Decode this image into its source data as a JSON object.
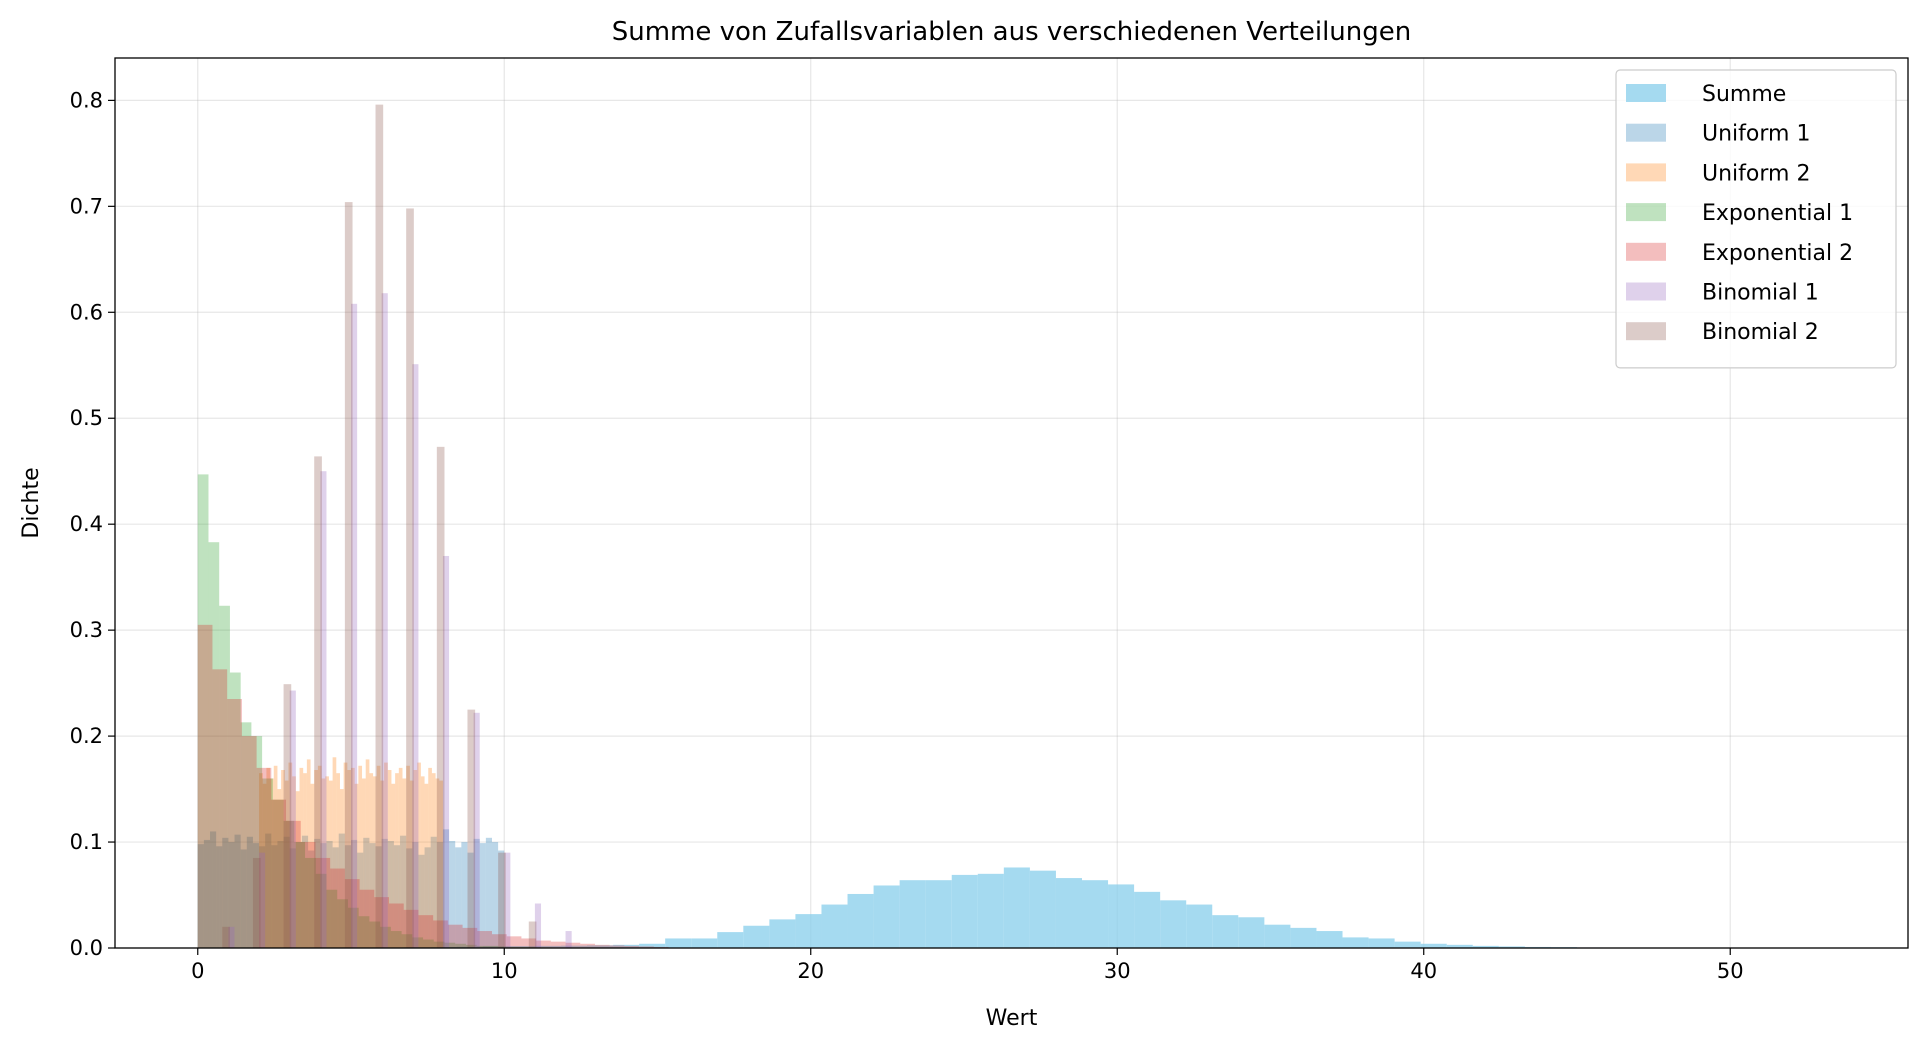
{
  "chart_data": {
    "type": "bar",
    "subtype": "overlapping-histogram",
    "title": "Summe von Zufallsvariablen aus verschiedenen Verteilungen",
    "xlabel": "Wert",
    "ylabel": "Dichte",
    "xlim": [
      -2.7,
      55.8
    ],
    "ylim": [
      0,
      0.84
    ],
    "xticks": [
      0,
      10,
      20,
      30,
      40,
      50
    ],
    "yticks": [
      0.0,
      0.1,
      0.2,
      0.3,
      0.4,
      0.5,
      0.6,
      0.7,
      0.8
    ],
    "grid": true,
    "legend_position": "top-right",
    "series": [
      {
        "name": "Summe",
        "color": "#87ceeb",
        "alpha": 0.75,
        "bin_edges": [
          0.8,
          1.65,
          2.5,
          3.35,
          4.2,
          5.05,
          5.9,
          6.75,
          7.6,
          8.45,
          9.3,
          10.15,
          11.0,
          11.85,
          12.7,
          13.55,
          14.4,
          15.25,
          16.1,
          16.95,
          17.8,
          18.65,
          19.5,
          20.35,
          21.2,
          22.05,
          22.9,
          23.75,
          24.6,
          25.45,
          26.3,
          27.15,
          28.0,
          28.85,
          29.7,
          30.55,
          31.4,
          32.25,
          33.1,
          33.95,
          34.8,
          35.65,
          36.5,
          37.35,
          38.2,
          39.05,
          39.9,
          40.75,
          41.6,
          42.45,
          43.3,
          44.15,
          45.0,
          45.85,
          46.7,
          47.55,
          48.4,
          49.25,
          50.1,
          50.95,
          51.8,
          52.65,
          53.5
        ],
        "values": [
          0.0002,
          0,
          0.0002,
          0,
          0,
          0,
          0.0005,
          0.0008,
          0.001,
          0.0012,
          0.0015,
          0.0018,
          0.002,
          0.0022,
          0.0025,
          0.003,
          0.004,
          0.009,
          0.009,
          0.015,
          0.021,
          0.027,
          0.032,
          0.041,
          0.051,
          0.059,
          0.064,
          0.064,
          0.069,
          0.07,
          0.076,
          0.073,
          0.066,
          0.064,
          0.06,
          0.053,
          0.045,
          0.041,
          0.031,
          0.029,
          0.022,
          0.019,
          0.016,
          0.01,
          0.009,
          0.006,
          0.004,
          0.003,
          0.002,
          0.0015,
          0.001,
          0.0008,
          0.0005,
          0.0004,
          0.0003,
          0.0002,
          0.0002,
          0.0001,
          0.0001,
          0.0001,
          0.0001,
          0.0001
        ]
      },
      {
        "name": "Uniform 1",
        "color": "#1f77b4",
        "alpha": 0.3,
        "bin_edges": [
          0.0,
          0.2,
          0.4,
          0.6,
          0.8,
          1.0,
          1.2,
          1.4,
          1.6,
          1.8,
          2.0,
          2.2,
          2.4,
          2.6,
          2.8,
          3.0,
          3.2,
          3.4,
          3.6,
          3.8,
          4.0,
          4.2,
          4.4,
          4.6,
          4.8,
          5.0,
          5.2,
          5.4,
          5.6,
          5.8,
          6.0,
          6.2,
          6.4,
          6.6,
          6.8,
          7.0,
          7.2,
          7.4,
          7.6,
          7.8,
          8.0,
          8.2,
          8.4,
          8.6,
          8.8,
          9.0,
          9.2,
          9.4,
          9.6,
          9.8,
          10.0
        ],
        "values": [
          0.098,
          0.102,
          0.11,
          0.096,
          0.104,
          0.1,
          0.107,
          0.093,
          0.105,
          0.099,
          0.096,
          0.108,
          0.097,
          0.101,
          0.105,
          0.094,
          0.1,
          0.106,
          0.092,
          0.103,
          0.099,
          0.101,
          0.095,
          0.108,
          0.097,
          0.102,
          0.09,
          0.104,
          0.099,
          0.096,
          0.103,
          0.101,
          0.097,
          0.106,
          0.094,
          0.1,
          0.088,
          0.095,
          0.105,
          0.1,
          0.112,
          0.101,
          0.095,
          0.1,
          0.09,
          0.103,
          0.099,
          0.104,
          0.1,
          0.092
        ]
      },
      {
        "name": "Uniform 2",
        "color": "#ff7f0e",
        "alpha": 0.3,
        "bin_edges": [
          2.0,
          2.12,
          2.24,
          2.36,
          2.48,
          2.6,
          2.72,
          2.84,
          2.96,
          3.08,
          3.2,
          3.32,
          3.44,
          3.56,
          3.68,
          3.8,
          3.92,
          4.04,
          4.16,
          4.28,
          4.4,
          4.52,
          4.64,
          4.76,
          4.88,
          5.0,
          5.12,
          5.24,
          5.36,
          5.48,
          5.6,
          5.72,
          5.84,
          5.96,
          6.08,
          6.2,
          6.32,
          6.44,
          6.56,
          6.68,
          6.8,
          6.92,
          7.04,
          7.16,
          7.28,
          7.4,
          7.52,
          7.64,
          7.76,
          7.88,
          8.0
        ],
        "values": [
          0.165,
          0.155,
          0.17,
          0.16,
          0.172,
          0.15,
          0.168,
          0.158,
          0.175,
          0.162,
          0.148,
          0.17,
          0.165,
          0.178,
          0.155,
          0.168,
          0.172,
          0.16,
          0.162,
          0.158,
          0.18,
          0.165,
          0.15,
          0.175,
          0.168,
          0.17,
          0.155,
          0.172,
          0.16,
          0.178,
          0.165,
          0.162,
          0.172,
          0.158,
          0.175,
          0.168,
          0.155,
          0.165,
          0.17,
          0.16,
          0.172,
          0.158,
          0.168,
          0.175,
          0.162,
          0.155,
          0.17,
          0.165,
          0.16,
          0.158
        ]
      },
      {
        "name": "Exponential 1",
        "color": "#2ca02c",
        "alpha": 0.3,
        "bin_edges": [
          0.0,
          0.35,
          0.7,
          1.05,
          1.4,
          1.75,
          2.1,
          2.45,
          2.8,
          3.15,
          3.5,
          3.85,
          4.2,
          4.55,
          4.9,
          5.25,
          5.6,
          5.95,
          6.3,
          6.65,
          7.0,
          7.35,
          7.7,
          8.05,
          8.4,
          8.75,
          9.1,
          9.45,
          9.8,
          10.15,
          10.5,
          10.85,
          11.2,
          11.55,
          11.9,
          12.25
        ],
        "values": [
          0.447,
          0.383,
          0.323,
          0.26,
          0.213,
          0.2,
          0.16,
          0.14,
          0.12,
          0.1,
          0.085,
          0.07,
          0.055,
          0.046,
          0.038,
          0.03,
          0.025,
          0.02,
          0.016,
          0.013,
          0.01,
          0.008,
          0.006,
          0.005,
          0.004,
          0.003,
          0.002,
          0.002,
          0.0015,
          0.001,
          0.001,
          0.0008,
          0.0006,
          0.0005,
          0.0004
        ]
      },
      {
        "name": "Exponential 2",
        "color": "#d62728",
        "alpha": 0.3,
        "bin_edges": [
          0.0,
          0.48,
          0.96,
          1.44,
          1.92,
          2.4,
          2.88,
          3.36,
          3.84,
          4.32,
          4.8,
          5.28,
          5.76,
          6.24,
          6.72,
          7.2,
          7.68,
          8.16,
          8.64,
          9.12,
          9.6,
          10.08,
          10.56,
          11.04,
          11.52,
          12.0,
          12.48,
          12.96,
          13.44,
          13.92,
          14.4,
          14.88,
          15.36
        ],
        "values": [
          0.305,
          0.263,
          0.235,
          0.2,
          0.17,
          0.14,
          0.12,
          0.1,
          0.085,
          0.075,
          0.065,
          0.055,
          0.048,
          0.042,
          0.036,
          0.031,
          0.026,
          0.022,
          0.019,
          0.016,
          0.013,
          0.011,
          0.009,
          0.007,
          0.006,
          0.005,
          0.004,
          0.003,
          0.0025,
          0.002,
          0.0015,
          0.001
        ]
      },
      {
        "name": "Binomial 1",
        "color": "#9467bd",
        "alpha": 0.3,
        "bin_edges": [
          1.0,
          1.2,
          1.4,
          1.6,
          1.8,
          2.0,
          2.2,
          2.4,
          2.6,
          2.8,
          3.0,
          3.2,
          3.4,
          3.6,
          3.8,
          4.0,
          4.2,
          4.4,
          4.6,
          4.8,
          5.0,
          5.2,
          5.4,
          5.6,
          5.8,
          6.0,
          6.2,
          6.4,
          6.6,
          6.8,
          7.0,
          7.2,
          7.4,
          7.6,
          7.8,
          8.0,
          8.2,
          8.4,
          8.6,
          8.8,
          9.0,
          9.2,
          9.4,
          9.6,
          9.8,
          10.0,
          10.2,
          10.4,
          10.6,
          10.8,
          11.0,
          11.2,
          11.4,
          11.6,
          11.8,
          12.0,
          12.2
        ],
        "values": [
          0.02,
          0,
          0,
          0,
          0,
          0.09,
          0,
          0,
          0,
          0,
          0.243,
          0,
          0,
          0,
          0,
          0.45,
          0,
          0,
          0,
          0,
          0.608,
          0,
          0,
          0,
          0,
          0.618,
          0,
          0,
          0,
          0,
          0.551,
          0,
          0,
          0,
          0,
          0.37,
          0,
          0,
          0,
          0,
          0.222,
          0,
          0,
          0,
          0,
          0.09,
          0,
          0,
          0,
          0,
          0.042,
          0,
          0,
          0,
          0,
          0.016
        ]
      },
      {
        "name": "Binomial 2",
        "color": "#8c564b",
        "alpha": 0.3,
        "bin_edges": [
          0.8,
          1.05,
          1.3,
          1.55,
          1.8,
          2.05,
          2.3,
          2.55,
          2.8,
          3.05,
          3.3,
          3.55,
          3.8,
          4.05,
          4.3,
          4.55,
          4.8,
          5.05,
          5.3,
          5.55,
          5.8,
          6.05,
          6.3,
          6.55,
          6.8,
          7.05,
          7.3,
          7.55,
          7.8,
          8.05,
          8.3,
          8.55,
          8.8,
          9.05,
          9.3,
          9.55,
          9.8,
          10.05,
          10.3,
          10.55,
          10.8,
          11.05,
          11.3
        ],
        "values": [
          0.02,
          0,
          0,
          0,
          0.085,
          0,
          0,
          0,
          0.249,
          0,
          0,
          0,
          0.464,
          0,
          0,
          0,
          0.704,
          0,
          0,
          0,
          0.796,
          0,
          0,
          0,
          0.698,
          0,
          0,
          0,
          0.473,
          0,
          0,
          0,
          0.225,
          0,
          0,
          0,
          0.09,
          0,
          0,
          0,
          0.025,
          0
        ]
      }
    ]
  }
}
